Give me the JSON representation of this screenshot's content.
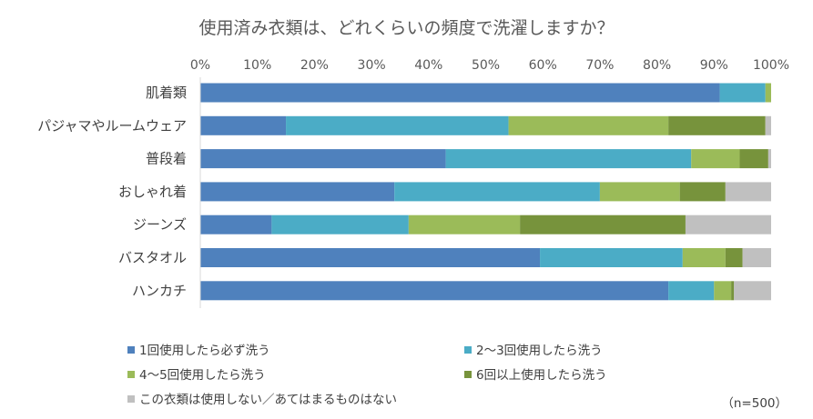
{
  "chart_data": {
    "type": "bar",
    "orientation": "horizontal",
    "stacked": true,
    "percent": true,
    "title": "使用済み衣類は、どれくらいの頻度で洗濯しますか？",
    "x_ticks": [
      "0%",
      "10%",
      "20%",
      "30%",
      "40%",
      "50%",
      "60%",
      "70%",
      "80%",
      "90%",
      "100%"
    ],
    "xlim": [
      0,
      100
    ],
    "categories": [
      "肌着類",
      "パジャマやルームウェア",
      "普段着",
      "おしゃれ着",
      "ジーンズ",
      "バスタオル",
      "ハンカチ"
    ],
    "series": [
      {
        "name": "1回使用したら必ず洗う",
        "color": "#4F81BD",
        "values": [
          91,
          15,
          43,
          34,
          12.5,
          59.5,
          82
        ]
      },
      {
        "name": "2〜3回使用したら洗う",
        "color": "#4BACC6",
        "values": [
          8,
          39,
          43,
          36,
          24,
          25,
          8
        ]
      },
      {
        "name": "4〜5回使用したら洗う",
        "color": "#9BBB59",
        "values": [
          1,
          28,
          8.5,
          14,
          19.5,
          7.5,
          3
        ]
      },
      {
        "name": "6回以上使用したら洗う",
        "color": "#77933C",
        "values": [
          0,
          17,
          5,
          8,
          29,
          3,
          0.5
        ]
      },
      {
        "name": "この衣類は使用しない／あてはまるものはない",
        "color": "#C0C0C0",
        "values": [
          0,
          1,
          0.5,
          8,
          15,
          5,
          6.5
        ]
      }
    ],
    "legend_position": "bottom",
    "grid": false
  },
  "note": "（n=500）"
}
